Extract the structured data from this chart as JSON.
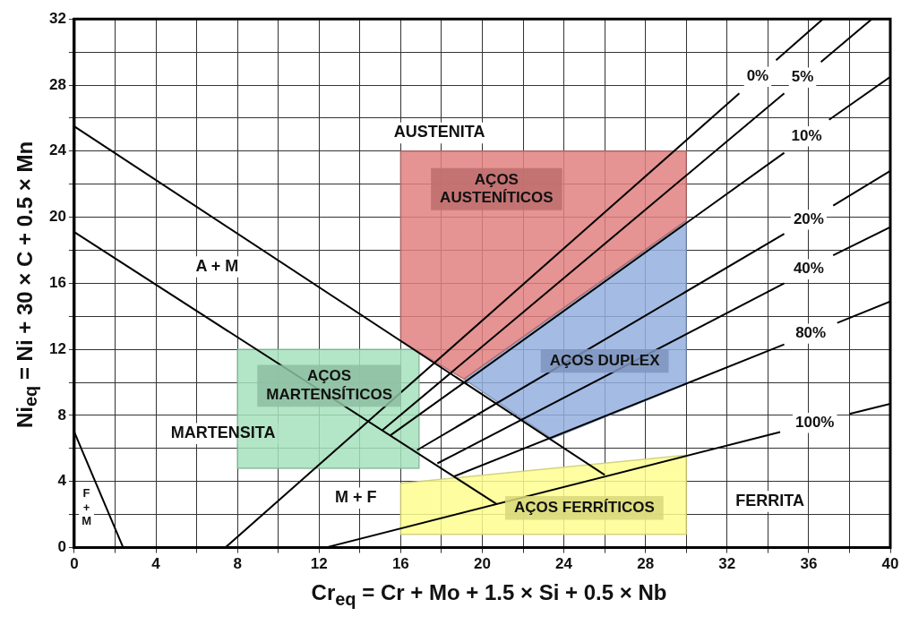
{
  "chart_data": {
    "type": "line",
    "xlabel": "Cr$_{eq}$ = Cr + Mo + 1.5 × Si + 0.5 × Nb",
    "ylabel": "Ni$_{eq}$ = Ni + 30 × C + 0.5 × Mn",
    "xlim": [
      0,
      40
    ],
    "ylim": [
      0,
      32
    ],
    "xticks": [
      0,
      {
        "value": 2,
        "label": null
      },
      4,
      {
        "value": 6,
        "label": null
      },
      8,
      {
        "value": 10,
        "label": null
      },
      12,
      {
        "value": 14,
        "label": null
      },
      16,
      {
        "value": 18,
        "label": null
      },
      20,
      {
        "value": 22,
        "label": null
      },
      24,
      {
        "value": 26,
        "label": null
      },
      28,
      {
        "value": 30,
        "label": null
      },
      32,
      {
        "value": 34,
        "label": null
      },
      36,
      {
        "value": 38,
        "label": null
      },
      40
    ],
    "yticks": [
      0,
      {
        "value": 2,
        "label": null
      },
      4,
      {
        "value": 6,
        "label": null
      },
      8,
      {
        "value": 10,
        "label": null
      },
      12,
      {
        "value": 14,
        "label": null
      },
      16,
      {
        "value": 18,
        "label": null
      },
      20,
      {
        "value": 22,
        "label": null
      },
      24,
      {
        "value": 26,
        "label": null
      },
      28,
      {
        "value": 30,
        "label": null
      },
      32
    ],
    "grid": true,
    "legend": false,
    "marker": "none",
    "line_style": "solid",
    "series": [
      {
        "type": "area",
        "name": "AÇOS\nAUSTENÍTICOS",
        "color": "#e08080",
        "x": [
          16,
          30,
          30,
          19.1,
          16,
          16
        ],
        "values": [
          24,
          24,
          19.8,
          10.2,
          12.5,
          24
        ]
      },
      {
        "type": "area",
        "name": "AÇOS DUPLEX",
        "color": "#94afdf",
        "x": [
          19.1,
          30,
          30,
          23.4,
          19.1
        ],
        "values": [
          10.2,
          19.8,
          9.9,
          6.6,
          10.2
        ]
      },
      {
        "type": "area",
        "name": "AÇOS\nMARTENSÍTICOS",
        "color": "#a6e0bd",
        "x": [
          8,
          16.9,
          16.9,
          8,
          8
        ],
        "values": [
          12,
          12,
          4.8,
          4.8,
          12
        ]
      },
      {
        "type": "area",
        "name": "AÇOS FERRÍTICOS",
        "color": "#fefe90",
        "x": [
          16,
          30,
          30,
          16,
          16
        ],
        "values": [
          3.9,
          5.6,
          0.8,
          0.8,
          3.9
        ]
      },
      {
        "color": "#000000",
        "x": [
          0,
          26
        ],
        "values": [
          25.5,
          4.4
        ]
      },
      {
        "color": "#000000",
        "x": [
          0,
          20.7
        ],
        "values": [
          19.1,
          2.64
        ]
      },
      {
        "color": "#000000",
        "x": [
          0,
          2.4
        ],
        "values": [
          7,
          0
        ]
      },
      {
        "name": "0%",
        "color": "#000000",
        "x": [
          7.4,
          32.6,
          33.5,
          34.4,
          36.7
        ],
        "values": [
          0,
          27.5,
          null,
          29.5,
          32
        ]
      },
      {
        "name": "5%",
        "color": "#000000",
        "x": [
          15.1,
          34.8,
          35.7,
          36.6,
          39.1
        ],
        "values": [
          7.1,
          27.5,
          null,
          29.4,
          32
        ]
      },
      {
        "name": "10%",
        "color": "#000000",
        "x": [
          15.5,
          34.8,
          35.9,
          37,
          40
        ],
        "values": [
          6.8,
          23.9,
          null,
          25.9,
          28.5
        ]
      },
      {
        "name": "20%",
        "color": "#000000",
        "x": [
          16.8,
          34.8,
          36,
          37.2,
          40
        ],
        "values": [
          5.9,
          19,
          null,
          20.7,
          22.8
        ]
      },
      {
        "name": "40%",
        "color": "#000000",
        "x": [
          17.8,
          34.8,
          36,
          37.2,
          40
        ],
        "values": [
          5.1,
          16,
          null,
          17.7,
          19.4
        ]
      },
      {
        "name": "80%",
        "color": "#000000",
        "x": [
          18.6,
          34.8,
          36.1,
          37.4,
          40
        ],
        "values": [
          4.3,
          12.3,
          null,
          13.6,
          14.9
        ]
      },
      {
        "name": "100%",
        "color": "#000000",
        "x": [
          12.3,
          34.6,
          36.3,
          38,
          40
        ],
        "values": [
          0,
          7,
          null,
          8.1,
          8.7
        ]
      }
    ],
    "annotations": [
      "AUSTENITA",
      "A + M",
      "MARTENSITA",
      "M + F",
      "FERRITA",
      "F\n+\nM"
    ]
  }
}
